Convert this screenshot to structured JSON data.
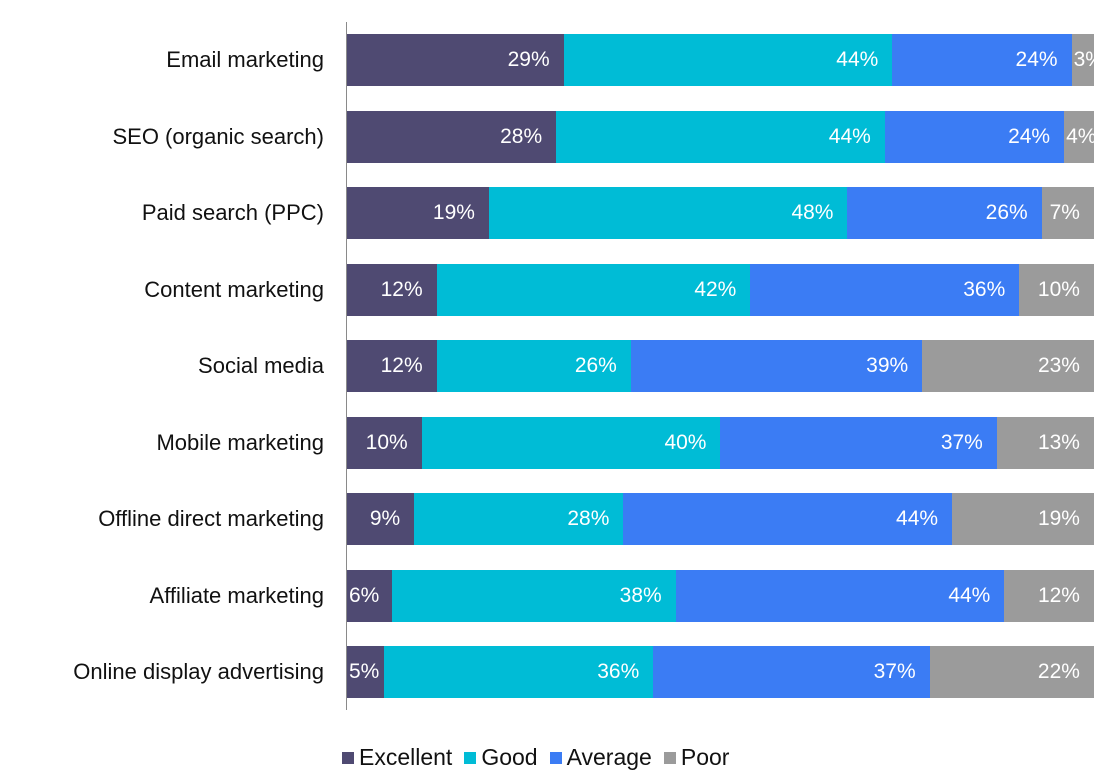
{
  "chart_data": {
    "type": "bar",
    "orientation": "horizontal",
    "stacked": true,
    "percent_stacked": true,
    "title": "",
    "xlabel": "",
    "ylabel": "",
    "xlim": [
      0,
      100
    ],
    "grid": false,
    "legend_position": "bottom",
    "categories": [
      "Email marketing",
      "SEO (organic search)",
      "Paid search (PPC)",
      "Content marketing",
      "Social media",
      "Mobile marketing",
      "Offline direct marketing",
      "Affiliate marketing",
      "Online display advertising"
    ],
    "series": [
      {
        "name": "Excellent",
        "color": "#4f4a72",
        "values": [
          29,
          28,
          19,
          12,
          12,
          10,
          9,
          6,
          5
        ]
      },
      {
        "name": "Good",
        "color": "#00bcd6",
        "values": [
          44,
          44,
          48,
          42,
          26,
          40,
          28,
          38,
          36
        ]
      },
      {
        "name": "Average",
        "color": "#3b7cf4",
        "values": [
          24,
          24,
          26,
          36,
          39,
          37,
          44,
          44,
          37
        ]
      },
      {
        "name": "Poor",
        "color": "#9b9b9b",
        "values": [
          3,
          4,
          7,
          10,
          23,
          13,
          19,
          12,
          22
        ]
      }
    ]
  },
  "legend": {
    "items": [
      {
        "label": "Excellent",
        "color": "#4f4a72"
      },
      {
        "label": "Good",
        "color": "#00bcd6"
      },
      {
        "label": "Average",
        "color": "#3b7cf4"
      },
      {
        "label": "Poor",
        "color": "#9b9b9b"
      }
    ]
  }
}
